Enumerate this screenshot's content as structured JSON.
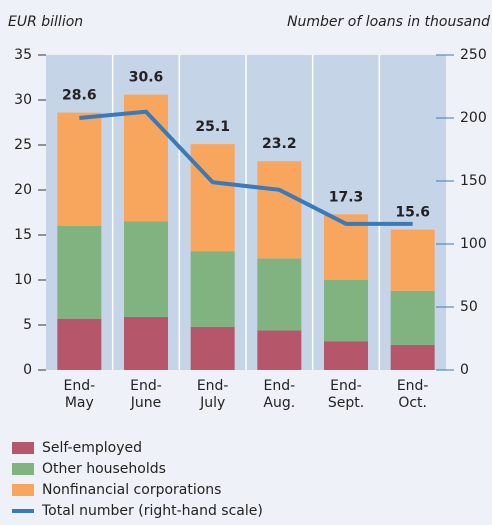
{
  "chart_data": {
    "type": "bar",
    "ylabel": "EUR billion",
    "y2label": "Number of loans in thousand",
    "categories": [
      [
        "End-",
        "May"
      ],
      [
        "End-",
        "June"
      ],
      [
        "End-",
        "July"
      ],
      [
        "End-",
        "Aug."
      ],
      [
        "End-",
        "Sept."
      ],
      [
        "End-",
        "Oct."
      ]
    ],
    "series": [
      {
        "name": "Self-employed",
        "color": "#b5566b",
        "values": [
          5.7,
          5.9,
          4.8,
          4.4,
          3.2,
          2.8
        ]
      },
      {
        "name": "Other households",
        "color": "#80b380",
        "values": [
          10.3,
          10.6,
          8.4,
          8.0,
          6.8,
          6.0
        ]
      },
      {
        "name": "Nonfinancial corporations",
        "color": "#f8a65e",
        "values": [
          12.6,
          14.1,
          11.9,
          10.8,
          7.3,
          6.8
        ]
      },
      {
        "name": "Total number (right-hand scale)",
        "color": "#3b7ab8",
        "type": "line",
        "axis": "y2",
        "values": [
          200,
          205,
          149,
          143,
          116,
          116
        ]
      }
    ],
    "total_labels": [
      28.6,
      30.6,
      25.1,
      23.2,
      17.3,
      15.6
    ],
    "ylim": [
      0,
      35
    ],
    "yticks": [
      0,
      5,
      10,
      15,
      20,
      25,
      30,
      35
    ],
    "y2lim": [
      0,
      250
    ],
    "y2ticks": [
      0,
      50,
      100,
      150,
      200,
      250
    ]
  }
}
